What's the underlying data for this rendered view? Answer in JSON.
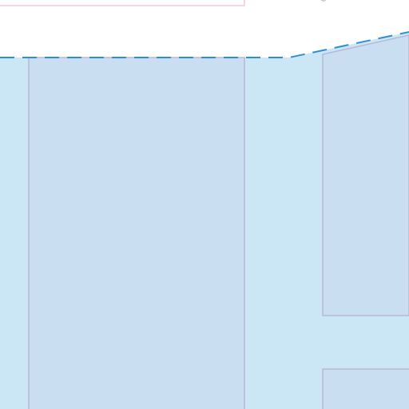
{
  "map": {
    "background_color": "#ffffff",
    "water_color": "#cbe6f5",
    "shoreline_color": "#2f8fd6",
    "shoreline_style": "dashed",
    "pier_fill_color": "#c9def1",
    "pier_stroke_color": "#b8b7d6",
    "land_parcel_fill_color": "#ffffff",
    "land_parcel_stroke_color": "#f4c7db",
    "labels": []
  }
}
